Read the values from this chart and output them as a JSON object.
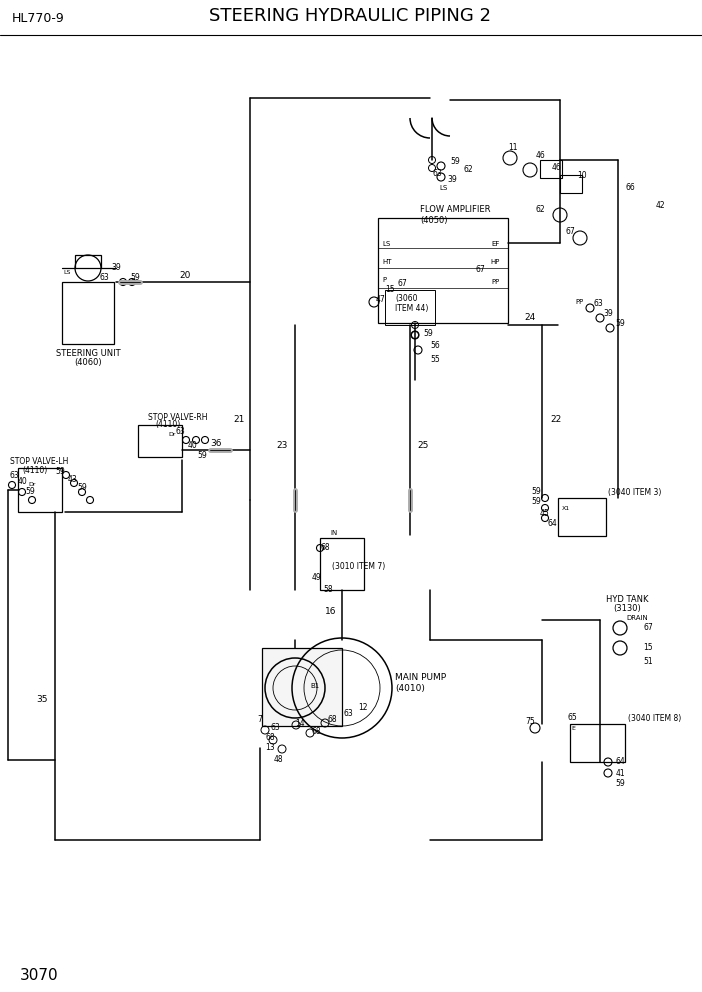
{
  "title": "STEERING HYDRAULIC PIPING 2",
  "model": "HL770-9",
  "page": "3070",
  "bg_color": "#ffffff",
  "lc": "#000000",
  "figsize": [
    7.02,
    9.92
  ],
  "dpi": 100
}
